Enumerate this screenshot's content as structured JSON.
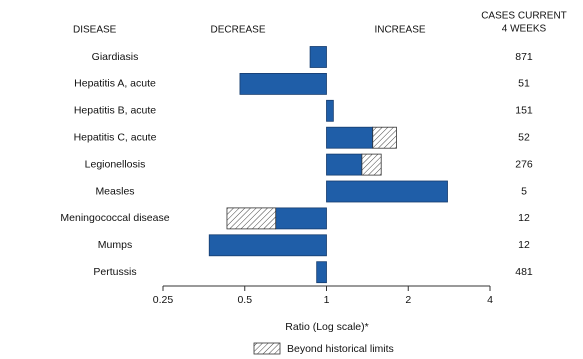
{
  "chart_data": {
    "type": "bar",
    "orientation": "horizontal",
    "headers": {
      "disease": "DISEASE",
      "decrease": "DECREASE",
      "increase": "INCREASE",
      "cases": [
        "CASES CURRENT",
        "4 WEEKS"
      ]
    },
    "categories": [
      "Giardiasis",
      "Hepatitis A, acute",
      "Hepatitis B, acute",
      "Hepatitis C, acute",
      "Legionellosis",
      "Measles",
      "Meningococcal disease",
      "Mumps",
      "Pertussis"
    ],
    "values": [
      0.87,
      0.48,
      1.06,
      1.81,
      1.59,
      2.79,
      0.43,
      0.37,
      0.92
    ],
    "historical_limits": [
      null,
      null,
      null,
      1.48,
      1.35,
      null,
      0.65,
      null,
      null
    ],
    "cases": [
      871,
      51,
      151,
      52,
      276,
      5,
      12,
      12,
      481
    ],
    "color": "#1f5ea8",
    "xlabel": "Ratio (Log scale)*",
    "xlim": [
      0.25,
      4
    ],
    "xticks": [
      0.25,
      0.5,
      1,
      2,
      4
    ],
    "log_scale": true,
    "legend": {
      "label": "Beyond historical limits"
    }
  }
}
